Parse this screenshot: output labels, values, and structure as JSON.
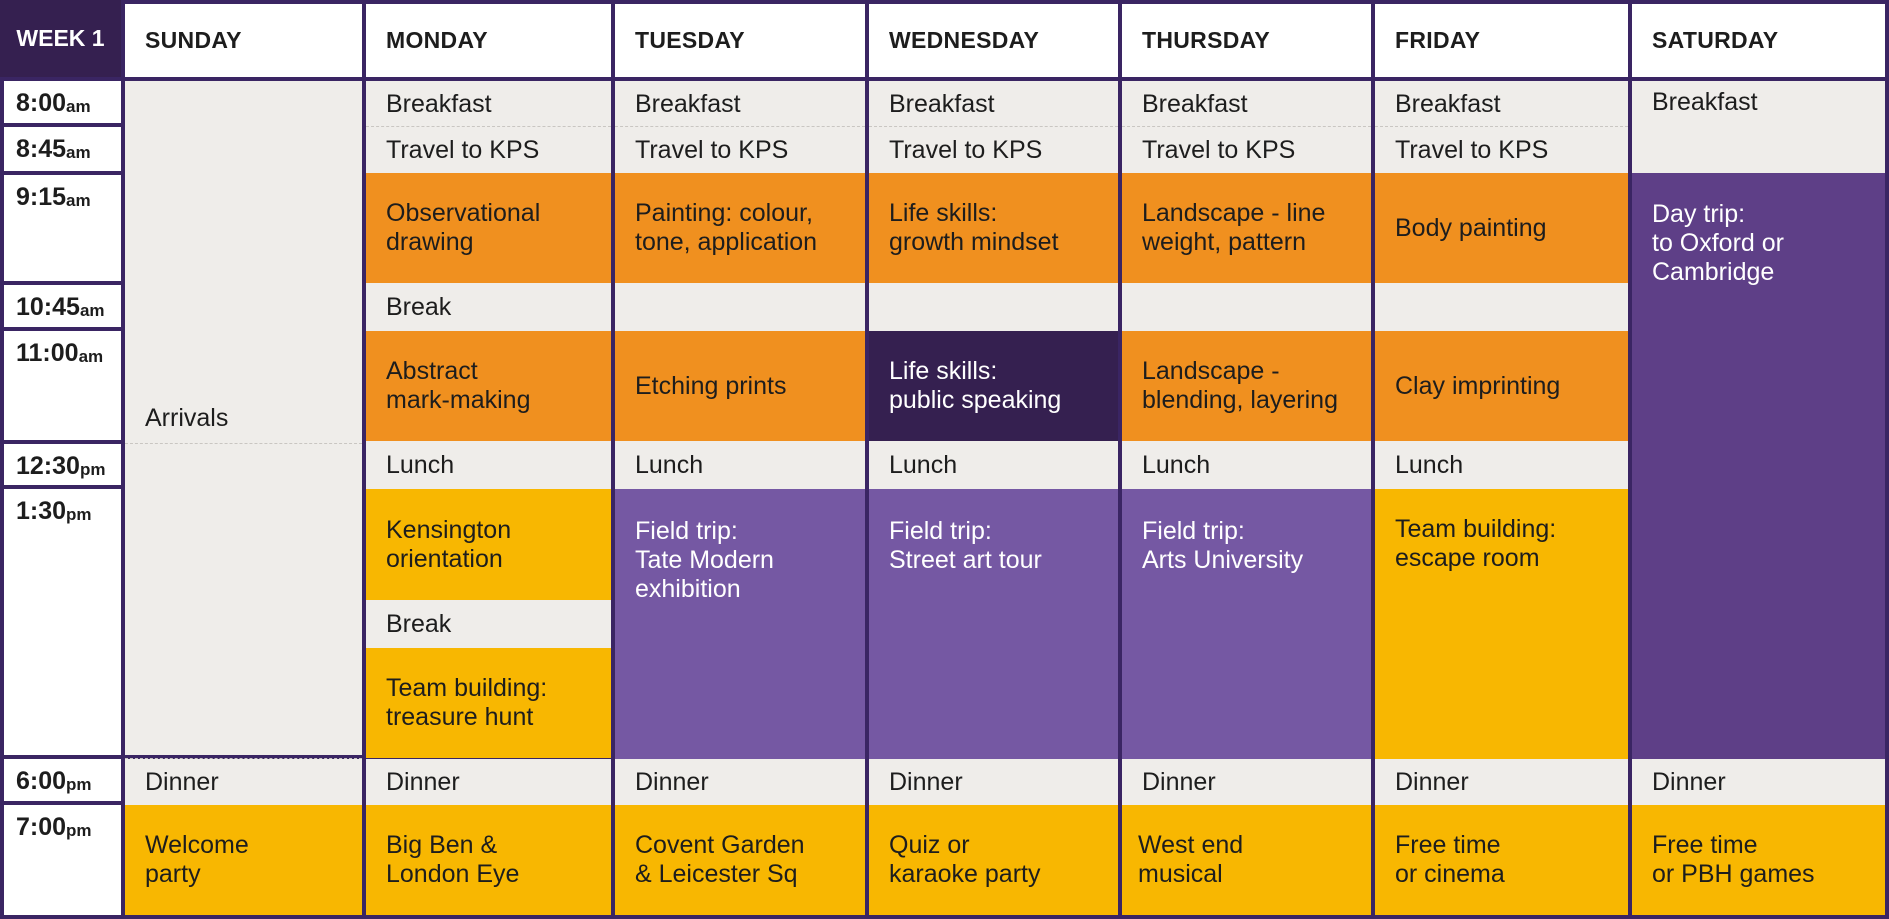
{
  "corner_label": "WEEK 1",
  "days": [
    "SUNDAY",
    "MONDAY",
    "TUESDAY",
    "WEDNESDAY",
    "THURSDAY",
    "FRIDAY",
    "SATURDAY"
  ],
  "times": [
    {
      "h": "8:00",
      "ap": "am"
    },
    {
      "h": "8:45",
      "ap": "am"
    },
    {
      "h": "9:15",
      "ap": "am"
    },
    {
      "h": "10:45",
      "ap": "am"
    },
    {
      "h": "11:00",
      "ap": "am"
    },
    {
      "h": "12:30",
      "ap": "pm"
    },
    {
      "h": "1:30",
      "ap": "pm"
    },
    {
      "h": "6:00",
      "ap": "pm"
    },
    {
      "h": "7:00",
      "ap": "pm"
    }
  ],
  "colors": {
    "grey": "#efedea",
    "orange": "#f0901f",
    "yellow": "#f8b701",
    "purple": "#7558a3",
    "dark_purple": "#5e3f87",
    "navy": "#352050",
    "border": "#3a2563"
  },
  "events": {
    "sunday": {
      "arrivals": "Arrivals",
      "dinner": "Dinner",
      "evening": "Welcome\nparty"
    },
    "monday": {
      "breakfast": "Breakfast",
      "travel": "Travel to KPS",
      "morning": "Observational\ndrawing",
      "break1": "Break",
      "late_morning": "Abstract\nmark-making",
      "lunch": "Lunch",
      "afternoon": "Kensington\norientation",
      "break2": "Break",
      "late_afternoon": "Team building:\ntreasure hunt",
      "dinner": "Dinner",
      "evening": "Big Ben &\nLondon Eye"
    },
    "tuesday": {
      "breakfast": "Breakfast",
      "travel": "Travel to KPS",
      "morning": "Painting: colour,\ntone, application",
      "late_morning": "Etching prints",
      "lunch": "Lunch",
      "afternoon": "Field trip:\nTate Modern\nexhibition",
      "dinner": "Dinner",
      "evening": "Covent Garden\n& Leicester Sq"
    },
    "wednesday": {
      "breakfast": "Breakfast",
      "travel": "Travel to KPS",
      "morning": "Life skills:\ngrowth mindset",
      "late_morning": "Life skills:\npublic speaking",
      "lunch": "Lunch",
      "afternoon": "Field trip:\nStreet art tour",
      "dinner": "Dinner",
      "evening": "Quiz or\nkaraoke party"
    },
    "thursday": {
      "breakfast": "Breakfast",
      "travel": "Travel to KPS",
      "morning": "Landscape - line\nweight, pattern",
      "late_morning": "Landscape -\nblending, layering",
      "lunch": "Lunch",
      "afternoon": "Field trip:\nArts University",
      "dinner": "Dinner",
      "evening": "West end\nmusical"
    },
    "friday": {
      "breakfast": "Breakfast",
      "travel": "Travel to KPS",
      "morning": "Body painting",
      "late_morning": "Clay imprinting",
      "lunch": "Lunch",
      "afternoon": "Team building:\nescape room",
      "dinner": "Dinner",
      "evening": "Free time\nor cinema"
    },
    "saturday": {
      "breakfast": "Breakfast",
      "day_trip": "Day trip:\nto Oxford or\nCambridge",
      "dinner": "Dinner",
      "evening": "Free time\nor PBH games"
    }
  }
}
